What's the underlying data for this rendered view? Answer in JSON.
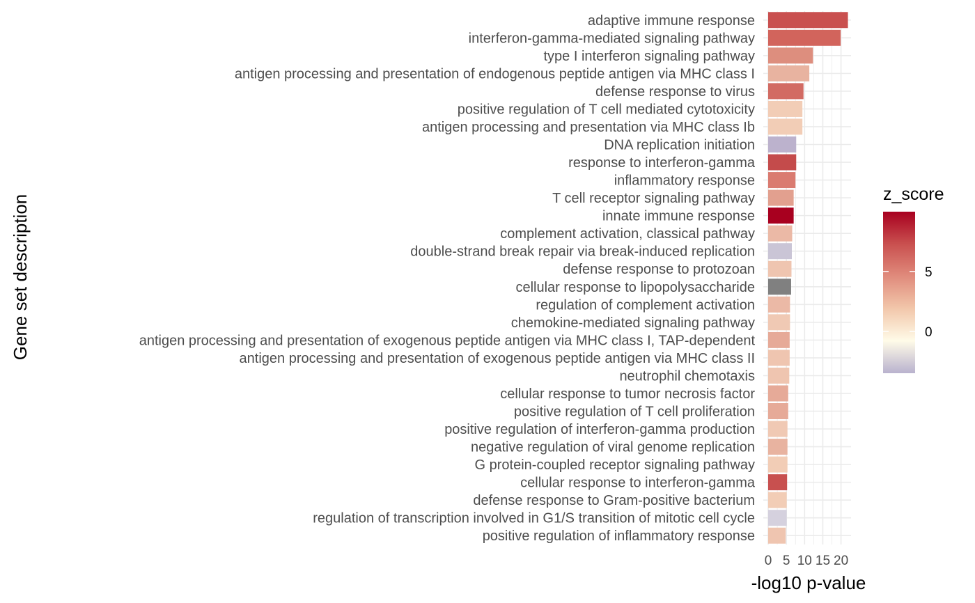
{
  "chart_data": {
    "type": "bar",
    "orientation": "horizontal",
    "xlabel": "-log10 p-value",
    "ylabel": "Gene set description",
    "xlim": [
      0,
      22
    ],
    "xticks": [
      0,
      5,
      10,
      15,
      20
    ],
    "grid": true,
    "legend": {
      "title": "z_score",
      "placement": "right",
      "ticks": [
        0,
        5
      ],
      "range": [
        -3.5,
        10
      ],
      "gradient": [
        "#b9b2ce",
        "#fffbe8",
        "#f2c7ab",
        "#e08b7c",
        "#c9504f",
        "#a8001f"
      ]
    },
    "categories": [
      "adaptive immune response",
      "interferon-gamma-mediated signaling pathway",
      "type I interferon signaling pathway",
      "antigen processing and presentation of endogenous peptide antigen via MHC class I",
      "defense response to virus",
      "positive regulation of T cell mediated cytotoxicity",
      "antigen processing and presentation via MHC class Ib",
      "DNA replication initiation",
      "response to interferon-gamma",
      "inflammatory response",
      "T cell receptor signaling pathway",
      "innate immune response",
      "complement activation, classical pathway",
      "double-strand break repair via break-induced replication",
      "defense response to protozoan",
      "cellular response to lipopolysaccharide",
      "regulation of complement activation",
      "chemokine-mediated signaling pathway",
      "antigen processing and presentation of exogenous peptide antigen via MHC class I, TAP-dependent",
      "antigen processing and presentation of exogenous peptide antigen via MHC class II",
      "neutrophil chemotaxis",
      "cellular response to tumor necrosis factor",
      "positive regulation of T cell proliferation",
      "positive regulation of interferon-gamma production",
      "negative regulation of viral genome replication",
      "G protein-coupled receptor signaling pathway",
      "cellular response to interferon-gamma",
      "defense response to Gram-positive bacterium",
      "regulation of transcription involved in G1/S transition of mitotic cell cycle",
      "positive regulation of inflammatory response"
    ],
    "values": [
      21.9,
      19.9,
      12.3,
      11.3,
      9.7,
      9.4,
      9.4,
      7.7,
      7.7,
      7.5,
      7.0,
      7.0,
      6.6,
      6.5,
      6.4,
      6.3,
      6.0,
      6.0,
      5.9,
      5.9,
      5.8,
      5.5,
      5.5,
      5.3,
      5.3,
      5.3,
      5.2,
      5.1,
      5.1,
      4.8
    ],
    "colors": [
      "#c9504f",
      "#d2645c",
      "#dd8e7e",
      "#e8b3a0",
      "#d26b63",
      "#f2cdb6",
      "#f2cdb6",
      "#bcb2cd",
      "#c44b4b",
      "#da7b70",
      "#e2a08f",
      "#a8001f",
      "#ebb9a6",
      "#cac5d6",
      "#efc5b0",
      "#808080",
      "#ebb9a6",
      "#f0c9b4",
      "#e6aa98",
      "#efc5b0",
      "#efc5b0",
      "#e6aa98",
      "#e6aa98",
      "#f0c9b4",
      "#e8b3a0",
      "#f2cdb6",
      "#c8504f",
      "#f2cdb6",
      "#d5d1de",
      "#efc5b0"
    ]
  }
}
